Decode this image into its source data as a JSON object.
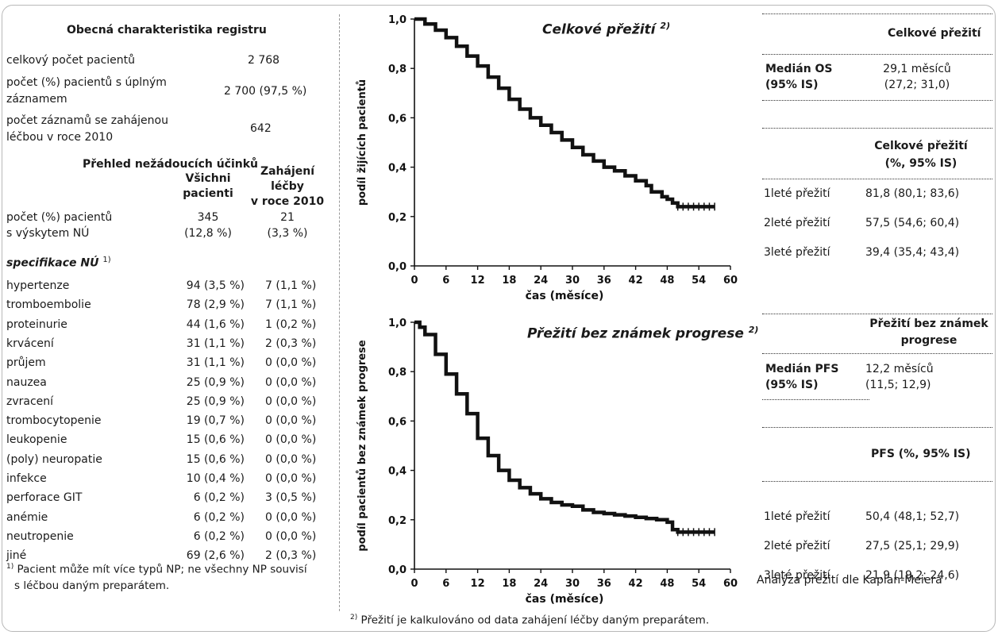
{
  "registry": {
    "title": "Obecná charakteristika registru",
    "rows": [
      {
        "label": [
          "celkový počet pacientů"
        ],
        "value": "2 768"
      },
      {
        "label": [
          "počet (%) pacientů s úplným",
          "záznamem"
        ],
        "value": "2 700 (97,5 %)"
      },
      {
        "label": [
          "počet záznamů se zahájenou",
          "léčbou v roce 2010"
        ],
        "value": "642"
      }
    ]
  },
  "adverse": {
    "title": "Přehled nežádoucích účinků",
    "col1_header": [
      "Všichni",
      "pacienti"
    ],
    "col2_header": [
      "Zahájení",
      "léčby",
      "v roce 2010"
    ],
    "summary_label": [
      "počet (%) pacientů",
      "s výskytem NÚ"
    ],
    "summary_col1": [
      "345",
      "(12,8 %)"
    ],
    "summary_col2": [
      "21",
      "(3,3 %)"
    ],
    "spec_label": "specifikace NÚ",
    "spec_sup": "1)",
    "rows": [
      {
        "name": "hypertenze",
        "all": "94 (3,5 %)",
        "y2010": "7 (1,1 %)"
      },
      {
        "name": "tromboembolie",
        "all": "78 (2,9 %)",
        "y2010": "7 (1,1 %)"
      },
      {
        "name": "proteinurie",
        "all": "44 (1,6 %)",
        "y2010": "1 (0,2 %)"
      },
      {
        "name": "krvácení",
        "all": "31 (1,1 %)",
        "y2010": "2 (0,3 %)"
      },
      {
        "name": "průjem",
        "all": "31 (1,1 %)",
        "y2010": "0 (0,0 %)"
      },
      {
        "name": "nauzea",
        "all": "25 (0,9 %)",
        "y2010": "0 (0,0 %)"
      },
      {
        "name": "zvracení",
        "all": "25 (0,9 %)",
        "y2010": "0 (0,0 %)"
      },
      {
        "name": "trombocytopenie",
        "all": "19 (0,7 %)",
        "y2010": "0 (0,0 %)"
      },
      {
        "name": "leukopenie",
        "all": "15 (0,6 %)",
        "y2010": "0 (0,0 %)"
      },
      {
        "name": "(poly) neuropatie",
        "all": "15 (0,6 %)",
        "y2010": "0 (0,0 %)"
      },
      {
        "name": "infekce",
        "all": "10 (0,4 %)",
        "y2010": "0 (0,0 %)"
      },
      {
        "name": "perforace GIT",
        "all": "6 (0,2 %)",
        "y2010": "3 (0,5 %)"
      },
      {
        "name": "anémie",
        "all": "6 (0,2 %)",
        "y2010": "0 (0,0 %)"
      },
      {
        "name": "neutropenie",
        "all": "6 (0,2 %)",
        "y2010": "0 (0,0 %)"
      },
      {
        "name": "jiné",
        "all": "69 (2,6 %)",
        "y2010": "2 (0,3 %)"
      }
    ],
    "footnote_sup": "1)",
    "footnote": [
      "Pacient může mít více typů NP; ne všechny NP souvisí",
      "s léčbou daným preparátem."
    ]
  },
  "chart_data": [
    {
      "type": "line",
      "title": "Celkové přežití",
      "title_sup": "2)",
      "xlabel": "čas (měsíce)",
      "ylabel": "podíl žijících pacientů",
      "xlim": [
        0,
        60
      ],
      "ylim": [
        0,
        1
      ],
      "xticks": [
        "0",
        "6",
        "12",
        "18",
        "24",
        "30",
        "36",
        "42",
        "48",
        "54",
        "60"
      ],
      "yticks": [
        "0,0",
        "0,2",
        "0,4",
        "0,6",
        "0,8",
        "1,0"
      ],
      "series": [
        {
          "x": [
            0,
            2,
            4,
            6,
            8,
            10,
            12,
            14,
            16,
            18,
            20,
            22,
            24,
            26,
            28,
            30,
            32,
            34,
            36,
            38,
            40,
            42,
            44,
            45,
            46,
            47,
            48,
            49,
            50,
            52,
            54,
            56,
            57
          ],
          "y": [
            1.0,
            0.98,
            0.955,
            0.925,
            0.89,
            0.85,
            0.81,
            0.765,
            0.72,
            0.675,
            0.635,
            0.6,
            0.57,
            0.54,
            0.51,
            0.48,
            0.45,
            0.425,
            0.4,
            0.385,
            0.365,
            0.345,
            0.325,
            0.3,
            0.3,
            0.28,
            0.27,
            0.255,
            0.24,
            0.24,
            0.24,
            0.24,
            0.24
          ]
        }
      ]
    },
    {
      "type": "line",
      "title": "Přežití bez známek progrese",
      "title_sup": "2)",
      "xlabel": "čas (měsíce)",
      "ylabel": "podíl pacientů bez známek progrese",
      "xlim": [
        0,
        60
      ],
      "ylim": [
        0,
        1
      ],
      "xticks": [
        "0",
        "6",
        "12",
        "18",
        "24",
        "30",
        "36",
        "42",
        "48",
        "54",
        "60"
      ],
      "yticks": [
        "0,0",
        "0,2",
        "0,4",
        "0,6",
        "0,8",
        "1,0"
      ],
      "series": [
        {
          "x": [
            0,
            1,
            2,
            4,
            6,
            8,
            10,
            12,
            14,
            16,
            18,
            20,
            22,
            24,
            26,
            28,
            30,
            32,
            34,
            36,
            38,
            40,
            42,
            44,
            46,
            48,
            49,
            50,
            52,
            54,
            56,
            57
          ],
          "y": [
            1.0,
            0.98,
            0.95,
            0.87,
            0.79,
            0.71,
            0.63,
            0.53,
            0.46,
            0.4,
            0.36,
            0.33,
            0.305,
            0.285,
            0.27,
            0.26,
            0.255,
            0.24,
            0.23,
            0.225,
            0.22,
            0.215,
            0.21,
            0.205,
            0.2,
            0.19,
            0.16,
            0.15,
            0.15,
            0.15,
            0.15,
            0.15
          ]
        }
      ]
    }
  ],
  "os_table": {
    "header": "Celkové přežití",
    "median_label": [
      "Medián OS",
      "(95% IS)"
    ],
    "median_value": [
      "29,1 měsíců",
      "(27,2; 31,0)"
    ],
    "rate_header": [
      "Celkové přežití",
      "(%, 95% IS)"
    ],
    "rows": [
      {
        "label": "1leté přežití",
        "value": "81,8 (80,1; 83,6)"
      },
      {
        "label": "2leté přežití",
        "value": "57,5 (54,6; 60,4)"
      },
      {
        "label": "3leté přežití",
        "value": "39,4 (35,4; 43,4)"
      }
    ]
  },
  "pfs_table": {
    "header": [
      "Přežití bez známek",
      "progrese"
    ],
    "median_label": [
      "Medián PFS",
      "(95% IS)"
    ],
    "median_value": [
      "12,2 měsíců",
      "(11,5; 12,9)"
    ],
    "rate_header": "PFS  (%, 95% IS)",
    "rows": [
      {
        "label": "1leté přežití",
        "value": "50,4 (48,1; 52,7)"
      },
      {
        "label": "2leté přežití",
        "value": "27,5 (25,1; 29,9)"
      },
      {
        "label": "3leté přežití",
        "value": "21,9 (19,2; 24,6)"
      }
    ]
  },
  "analysis_note": "Analýza přežití dle Kaplan-Meiera",
  "survival_footnote_sup": "2)",
  "survival_footnote": "Přežití je kalkulováno od data zahájení léčby daným preparátem."
}
